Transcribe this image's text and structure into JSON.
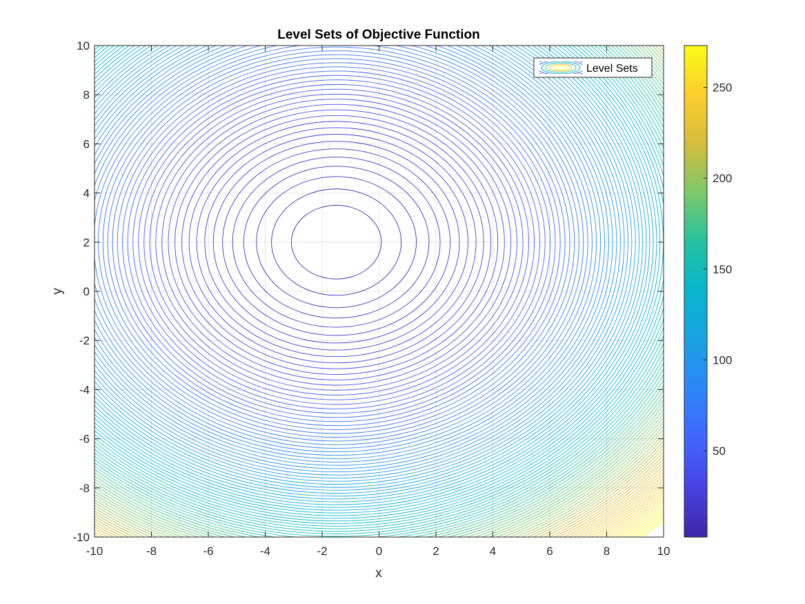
{
  "chart_data": {
    "type": "contour",
    "title": "Level Sets of Objective Function",
    "xlabel": "x",
    "ylabel": "y",
    "xlim": [
      -10,
      10
    ],
    "ylim": [
      -10,
      10
    ],
    "xticks": [
      -10,
      -8,
      -6,
      -4,
      -2,
      0,
      2,
      4,
      6,
      8,
      10
    ],
    "yticks": [
      -10,
      -8,
      -6,
      -4,
      -2,
      0,
      2,
      4,
      6,
      8,
      10
    ],
    "xtick_labels": [
      "-10",
      "-8",
      "-6",
      "-4",
      "-2",
      "0",
      "2",
      "4",
      "6",
      "8",
      "10"
    ],
    "ytick_labels": [
      "-10",
      "-8",
      "-6",
      "-4",
      "-2",
      "0",
      "2",
      "4",
      "6",
      "8",
      "10"
    ],
    "grid": true,
    "function": {
      "center_x": -1.5,
      "center_y": 2.0,
      "a": 1.0,
      "b": 1.11,
      "min_value": 2.5
    },
    "contour_levels": {
      "start": 5,
      "step": 2.7,
      "count": 102
    },
    "legend": {
      "entries": [
        "Level Sets"
      ],
      "location": "top-right"
    },
    "colorbar": {
      "colormap": "parula",
      "clim": [
        2.5,
        273
      ],
      "ticks": [
        50,
        100,
        150,
        200,
        250
      ],
      "tick_labels": [
        "50",
        "100",
        "150",
        "200",
        "250"
      ]
    }
  }
}
